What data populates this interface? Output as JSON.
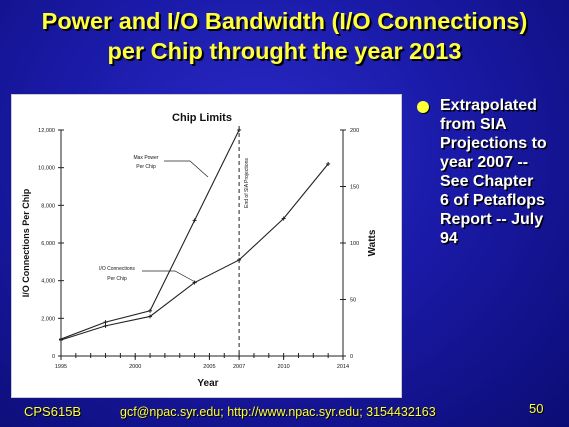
{
  "slide": {
    "title_line1": "Power and I/O Bandwidth (I/O Connections)",
    "title_line2": "per Chip throught the year 2013",
    "side_lines": [
      "Extrapolated",
      "from SIA",
      "Projections to",
      "year 2007 --",
      "See Chapter",
      "6 of Petaflops",
      "Report -- July",
      "94"
    ],
    "footer_course": "CPS615B",
    "footer_contact": "gcf@npac.syr.edu; http://www.npac.syr.edu; 3154432163",
    "page_number": "50"
  },
  "chart_data": {
    "type": "line",
    "title": "Chip Limits",
    "xlabel": "Year",
    "ylabel": "I/O Connections Per Chip",
    "y2label": "Watts",
    "xlim": [
      1995,
      2014
    ],
    "ylim": [
      0,
      12000
    ],
    "y2lim": [
      0,
      200
    ],
    "x_ticks": [
      1995,
      2000,
      2005,
      2007,
      2010,
      2014
    ],
    "y_ticks": [
      0,
      2000,
      4000,
      6000,
      8000,
      10000,
      12000
    ],
    "y_tick_labels": [
      "0",
      "2,000",
      "4,000",
      "6,000",
      "8,000",
      "10,000",
      "12,000"
    ],
    "y2_ticks": [
      0,
      50,
      100,
      150,
      200
    ],
    "vline": {
      "x": 2007,
      "label": "End of SIA Projections"
    },
    "series": [
      {
        "name": "Max Power Per Chip",
        "axis": "right",
        "label_lines": [
          "Max Power",
          "Per Chip"
        ],
        "x": [
          1995,
          1998,
          2001,
          2004,
          2007
        ],
        "values": [
          15,
          30,
          40,
          120,
          200
        ]
      },
      {
        "name": "I/O Connections Per Chip",
        "axis": "left",
        "label_lines": [
          "I/O Connections",
          "Per Chip"
        ],
        "x": [
          1995,
          1998,
          2001,
          2004,
          2007,
          2010,
          2013
        ],
        "values": [
          850,
          1600,
          2100,
          3900,
          5100,
          7300,
          10200
        ]
      }
    ]
  }
}
